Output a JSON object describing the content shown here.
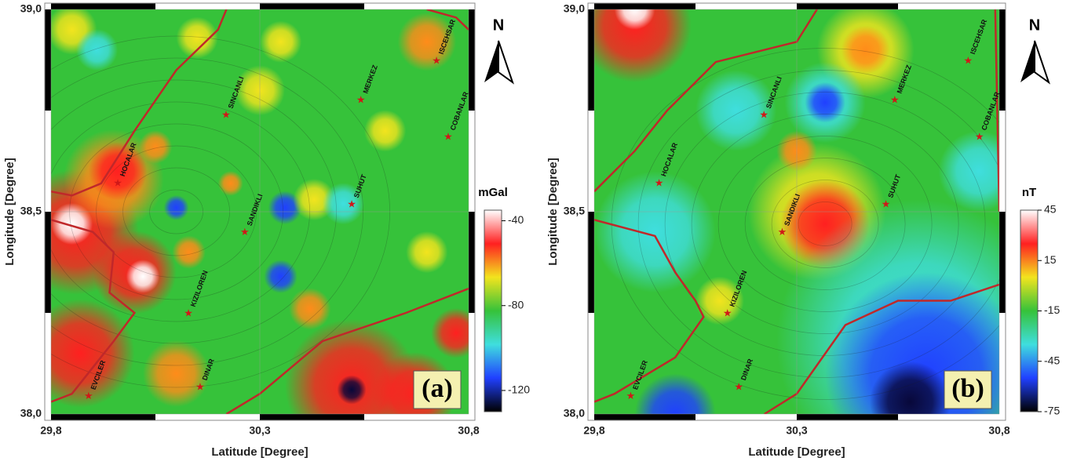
{
  "axes": {
    "xlabel": "Latitude [Degree]",
    "ylabel": "Longitude [Degree]",
    "xlim": [
      29.8,
      30.8
    ],
    "ylim": [
      38.0,
      39.0
    ],
    "xticks": [
      {
        "value": 29.8,
        "label": "29,8"
      },
      {
        "value": 30.3,
        "label": "30,3"
      },
      {
        "value": 30.8,
        "label": "30,8"
      }
    ],
    "yticks": [
      {
        "value": 38.0,
        "label": "38,0"
      },
      {
        "value": 38.5,
        "label": "38,5"
      },
      {
        "value": 39.0,
        "label": "39,0"
      }
    ]
  },
  "north": "N",
  "panels": [
    {
      "label": "(a)",
      "unit": "mGal",
      "colorbar": {
        "lim": [
          -130,
          -35
        ],
        "ticks": [
          -40,
          -80,
          -120
        ]
      }
    },
    {
      "label": "(b)",
      "unit": "nT",
      "colorbar": {
        "lim": [
          -75,
          45
        ],
        "ticks": [
          45,
          15,
          -15,
          -45,
          -75
        ]
      }
    }
  ],
  "towns": [
    {
      "name": "ISCEHSAR",
      "lon": 30.723,
      "lat": 38.874
    },
    {
      "name": "MERKEZ",
      "lon": 30.542,
      "lat": 38.777
    },
    {
      "name": "SINCANLI",
      "lon": 30.219,
      "lat": 38.74
    },
    {
      "name": "COBANLAR",
      "lon": 30.751,
      "lat": 38.686
    },
    {
      "name": "HOCALAR",
      "lon": 29.96,
      "lat": 38.572
    },
    {
      "name": "SUHUT",
      "lon": 30.52,
      "lat": 38.519
    },
    {
      "name": "SANDIKLI",
      "lon": 30.264,
      "lat": 38.45
    },
    {
      "name": "KIZILOREN",
      "lon": 30.129,
      "lat": 38.25
    },
    {
      "name": "DINAR",
      "lon": 30.157,
      "lat": 38.068
    },
    {
      "name": "EVCILER",
      "lon": 29.89,
      "lat": 38.045
    }
  ]
}
